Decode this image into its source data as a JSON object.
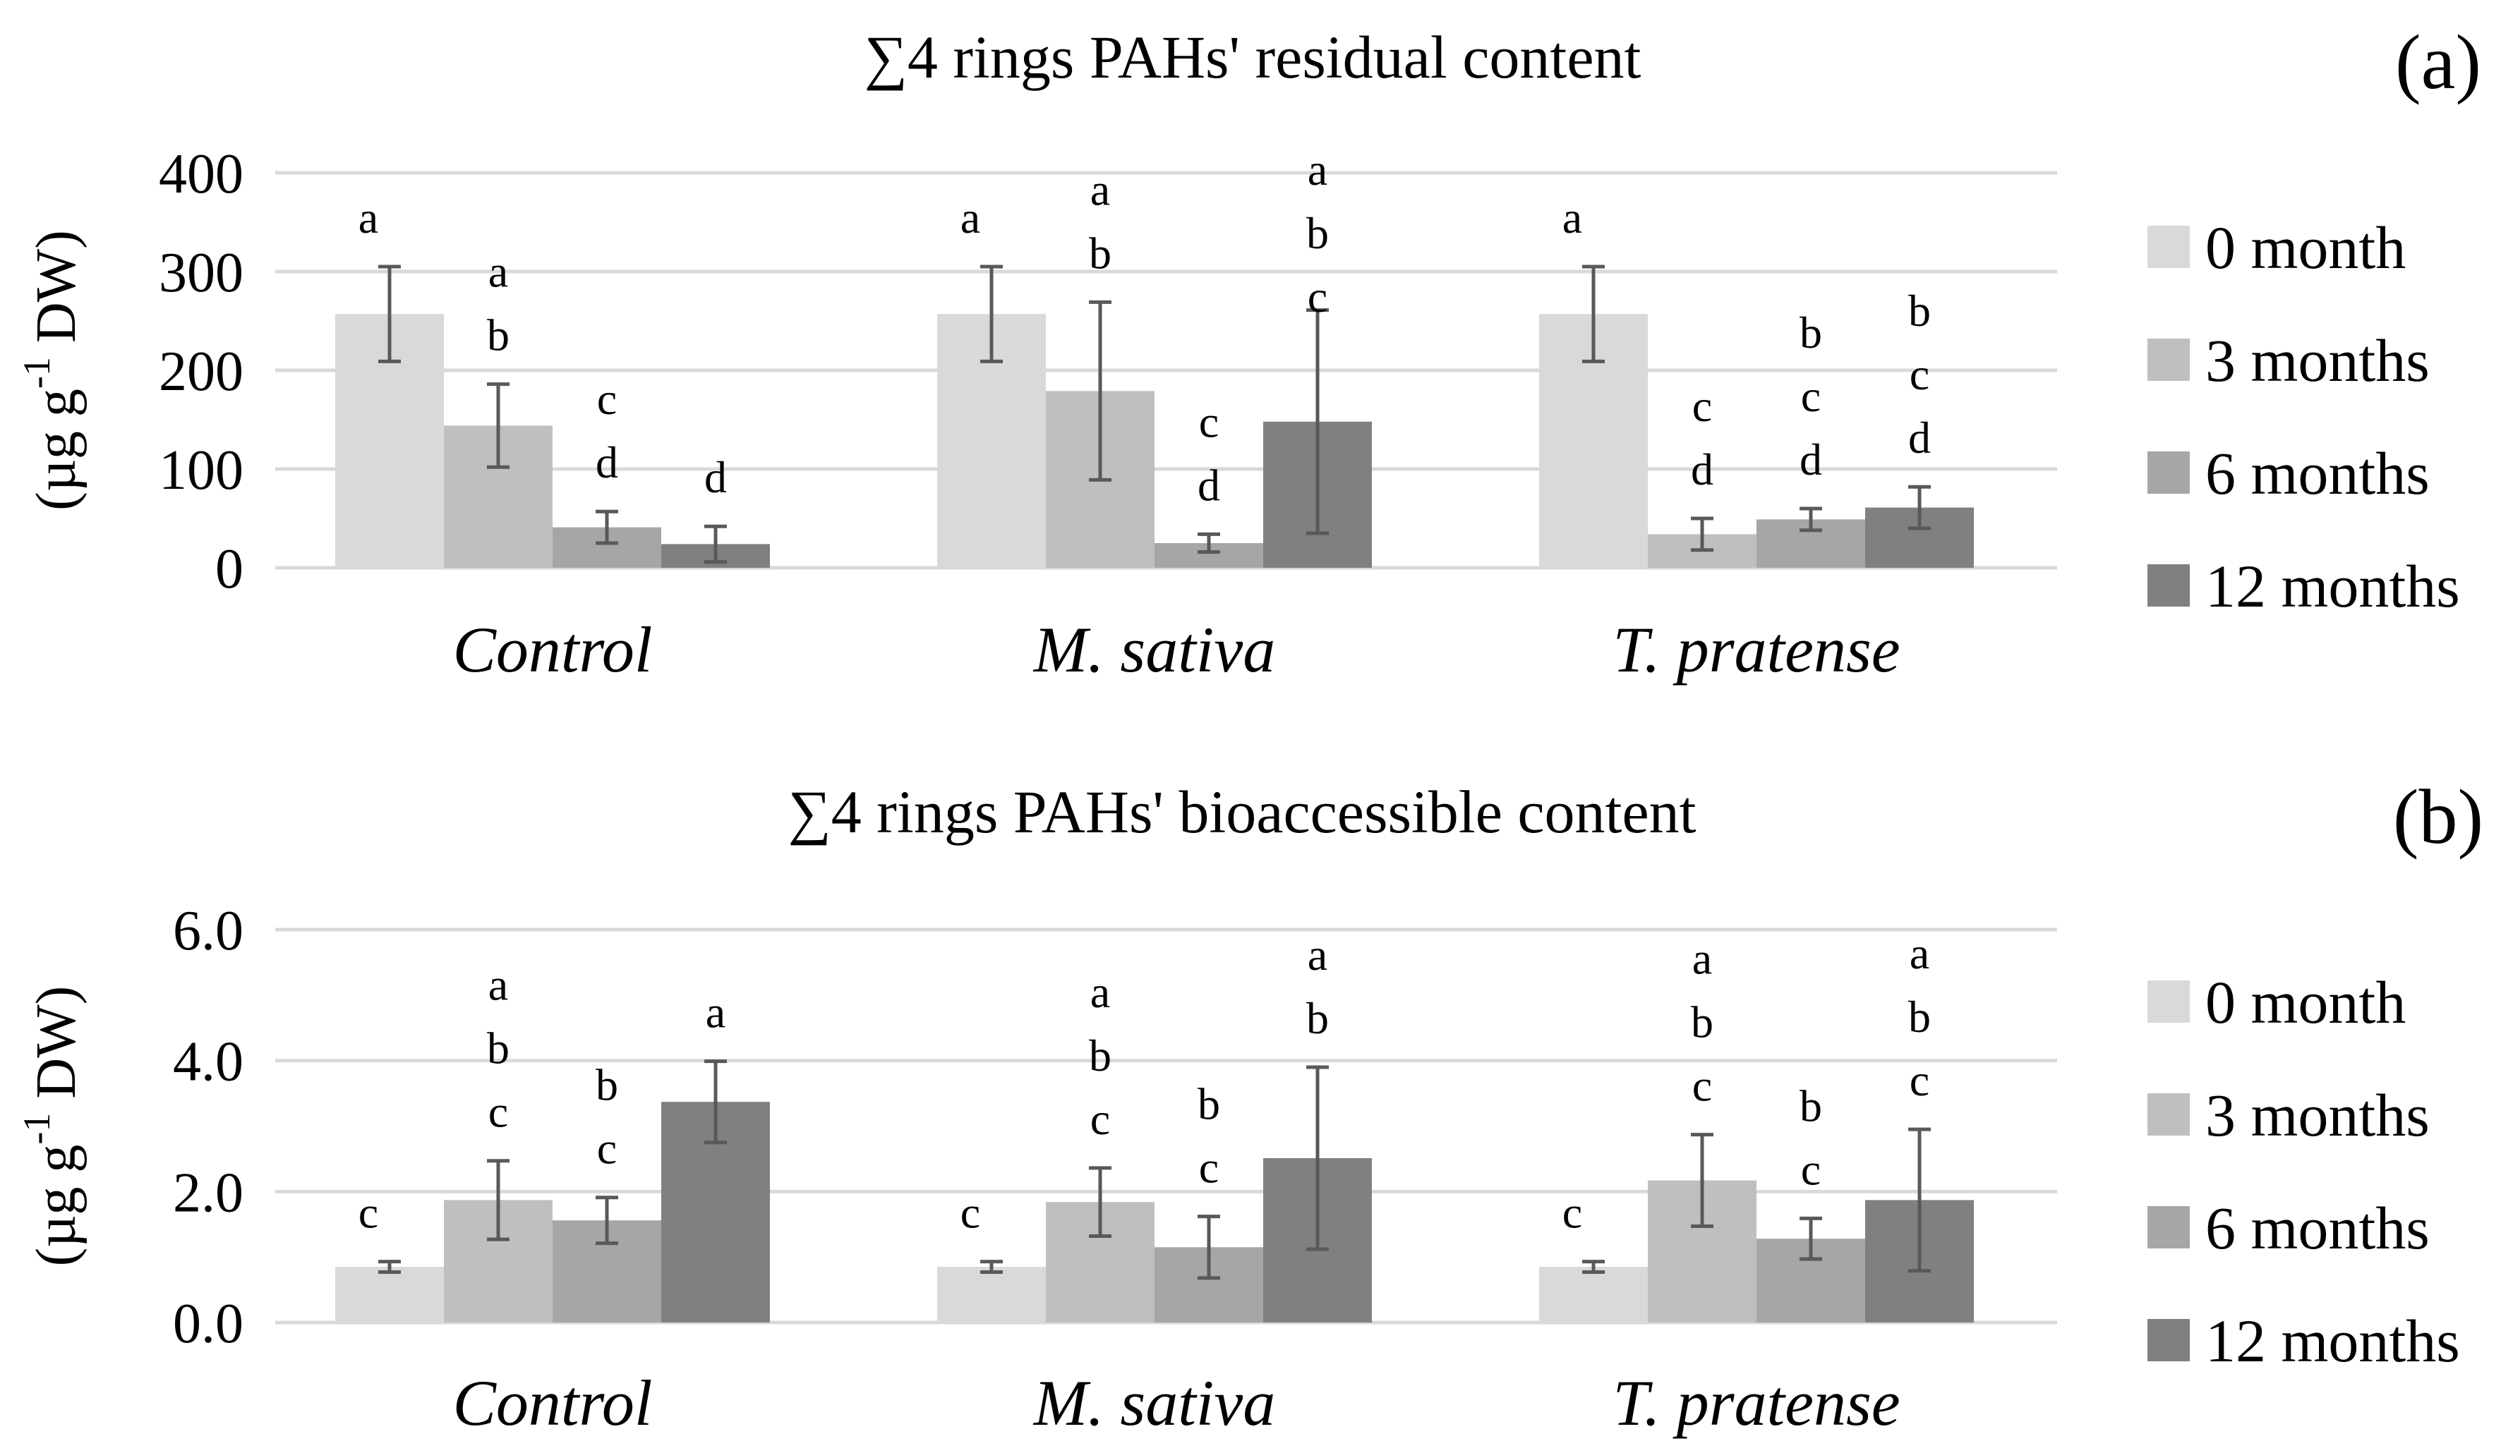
{
  "chart_data": [
    {
      "type": "bar",
      "panel_label": "(a)",
      "title": "∑4 rings PAHs' residual content",
      "ylabel_parts": [
        "(µg g",
        "-1",
        " DW)"
      ],
      "categories": [
        "Control",
        "M. sativa",
        "T. pratense"
      ],
      "ylim": [
        0,
        400
      ],
      "yticks": [
        "0",
        "100",
        "200",
        "300",
        "400"
      ],
      "grid": true,
      "legend_position": "right",
      "series": [
        {
          "name": "0 month",
          "color": "#d9d9d9",
          "values": [
            257,
            257,
            257
          ],
          "errors": [
            48,
            48,
            48
          ],
          "letters": [
            "a",
            "a",
            "a"
          ]
        },
        {
          "name": "3 months",
          "color": "#bfbfbf",
          "values": [
            144,
            179,
            34
          ],
          "errors": [
            42,
            90,
            16
          ],
          "letters": [
            "a\nb",
            "a\nb",
            "c\nd"
          ]
        },
        {
          "name": "6 months",
          "color": "#a6a6a6",
          "values": [
            41,
            25,
            49
          ],
          "errors": [
            16,
            9,
            11
          ],
          "letters": [
            "c\nd",
            "c\nd",
            "b\nc\nd"
          ]
        },
        {
          "name": "12 months",
          "color": "#808080",
          "values": [
            24,
            148,
            61
          ],
          "errors": [
            18,
            113,
            21
          ],
          "letters": [
            "d",
            "a\nb\nc",
            "b\nc\nd"
          ]
        }
      ]
    },
    {
      "type": "bar",
      "panel_label": "(b)",
      "title": "∑4 rings PAHs' bioaccessible content",
      "ylabel_parts": [
        "(µg g",
        "-1",
        " DW)"
      ],
      "categories": [
        "Control",
        "M. sativa",
        "T. pratense"
      ],
      "ylim": [
        0,
        6
      ],
      "yticks": [
        "0.0",
        "2.0",
        "4.0",
        "6.0"
      ],
      "grid": true,
      "legend_position": "right",
      "series": [
        {
          "name": "0 month",
          "color": "#d9d9d9",
          "values": [
            0.85,
            0.85,
            0.85
          ],
          "errors": [
            0.08,
            0.08,
            0.08
          ],
          "letters": [
            "c",
            "c",
            "c"
          ]
        },
        {
          "name": "3 months",
          "color": "#bfbfbf",
          "values": [
            1.87,
            1.84,
            2.17
          ],
          "errors": [
            0.6,
            0.52,
            0.7
          ],
          "letters": [
            "a\nb\nc",
            "a\nb\nc",
            "a\nb\nc"
          ]
        },
        {
          "name": "6 months",
          "color": "#a6a6a6",
          "values": [
            1.56,
            1.15,
            1.28
          ],
          "errors": [
            0.35,
            0.47,
            0.31
          ],
          "letters": [
            "b\nc",
            "b\nc",
            "b\nc"
          ]
        },
        {
          "name": "12 months",
          "color": "#808080",
          "values": [
            3.37,
            2.51,
            1.87
          ],
          "errors": [
            0.62,
            1.39,
            1.08
          ],
          "letters": [
            "a",
            "a\nb",
            "a\nb\nc"
          ]
        }
      ]
    }
  ]
}
